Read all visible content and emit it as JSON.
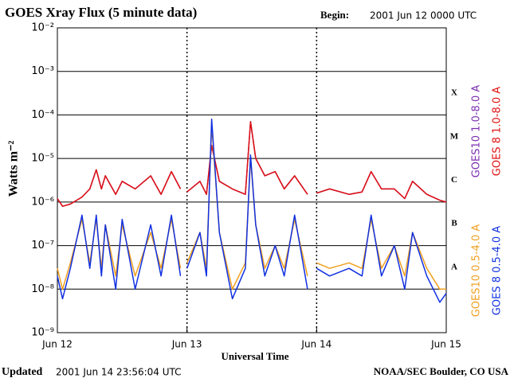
{
  "chart_data": {
    "type": "line",
    "title": "GOES Xray Flux (5 minute data)",
    "begin_label": "Begin:",
    "begin_value": "2001 Jun 12 0000 UTC",
    "updated_label": "Updated",
    "updated_value": "2001 Jun 14 23:56:04 UTC",
    "source": "NOAA/SEC Boulder, CO USA",
    "xlabel": "Universal Time",
    "ylabel": "Watts m⁻²",
    "ylog": true,
    "ylim": [
      1e-09,
      0.01
    ],
    "yticks": [
      {
        "value": 1e-09,
        "label": "10⁻⁹"
      },
      {
        "value": 1e-08,
        "label": "10⁻⁸"
      },
      {
        "value": 1e-07,
        "label": "10⁻⁷"
      },
      {
        "value": 1e-06,
        "label": "10⁻⁶"
      },
      {
        "value": 1e-05,
        "label": "10⁻⁵"
      },
      {
        "value": 0.0001,
        "label": "10⁻⁴"
      },
      {
        "value": 0.001,
        "label": "10⁻³"
      },
      {
        "value": 0.01,
        "label": "10⁻²"
      }
    ],
    "xlim": [
      12,
      15
    ],
    "xticks": [
      {
        "value": 12,
        "label": "Jun 12"
      },
      {
        "value": 13,
        "label": "Jun 13"
      },
      {
        "value": 14,
        "label": "Jun 14"
      },
      {
        "value": 15,
        "label": "Jun 15"
      }
    ],
    "grid": true,
    "class_labels": {
      "labels": [
        "A",
        "B",
        "C",
        "M",
        "X"
      ],
      "values": [
        1e-08,
        1e-07,
        1e-06,
        1e-05,
        0.0001
      ]
    },
    "x": [
      12.0,
      12.04,
      12.1,
      12.19,
      12.25,
      12.3,
      12.34,
      12.37,
      12.45,
      12.5,
      12.6,
      12.72,
      12.8,
      12.88,
      12.95,
      12.98,
      13.0,
      13.1,
      13.15,
      13.19,
      13.25,
      13.35,
      13.45,
      13.49,
      13.53,
      13.6,
      13.68,
      13.75,
      13.83,
      13.93,
      13.98,
      14.0,
      14.1,
      14.25,
      14.35,
      14.42,
      14.5,
      14.6,
      14.68,
      14.74,
      14.85,
      14.95,
      15.0
    ],
    "series": [
      {
        "name": "GOES10 1.0-8.0 A",
        "color": "#7b2fb0",
        "legend_group": "long",
        "values": [
          1.2e-06,
          8e-07,
          9e-07,
          1.3e-06,
          2e-06,
          5.5e-06,
          2e-06,
          4e-06,
          1.5e-06,
          3e-06,
          2e-06,
          4e-06,
          1.5e-06,
          5e-06,
          2e-06,
          null,
          1.7e-06,
          3e-06,
          1.5e-06,
          2e-05,
          3e-06,
          2e-06,
          1.5e-06,
          7e-05,
          1e-05,
          4e-06,
          5e-06,
          2e-06,
          4e-06,
          1.5e-06,
          null,
          1.6e-06,
          2e-06,
          1.5e-06,
          1.7e-06,
          5e-06,
          2e-06,
          2e-06,
          1.2e-06,
          3e-06,
          1.5e-06,
          1.1e-06,
          1e-06
        ]
      },
      {
        "name": "GOES 8 1.0-8.0 A",
        "color": "#e01010",
        "legend_group": "long",
        "values": [
          1.2e-06,
          8e-07,
          9e-07,
          1.3e-06,
          2e-06,
          5.5e-06,
          2e-06,
          4e-06,
          1.5e-06,
          3e-06,
          2e-06,
          4e-06,
          1.5e-06,
          5e-06,
          2e-06,
          null,
          1.7e-06,
          3e-06,
          1.5e-06,
          2e-05,
          3e-06,
          2e-06,
          1.5e-06,
          7e-05,
          1e-05,
          4e-06,
          5e-06,
          2e-06,
          4e-06,
          1.5e-06,
          null,
          1.6e-06,
          2e-06,
          1.5e-06,
          1.7e-06,
          5e-06,
          2e-06,
          2e-06,
          1.2e-06,
          3e-06,
          1.5e-06,
          1.1e-06,
          1e-06
        ]
      },
      {
        "name": "GOES10 0.5-4.0 A",
        "color": "#f0a020",
        "legend_group": "short",
        "values": [
          3e-08,
          1e-08,
          4e-08,
          4e-07,
          4e-08,
          4e-07,
          3e-08,
          3e-07,
          2e-08,
          3e-07,
          2e-08,
          2e-07,
          3e-08,
          4e-07,
          3e-08,
          null,
          4e-08,
          2e-07,
          3e-08,
          6e-05,
          2e-07,
          1e-08,
          4e-08,
          1e-05,
          3e-07,
          3e-08,
          1e-07,
          3e-08,
          4e-07,
          2e-08,
          null,
          4e-08,
          3e-08,
          4e-08,
          3e-08,
          4e-07,
          3e-08,
          1e-07,
          2e-08,
          2e-07,
          3e-08,
          1e-08,
          1e-08
        ]
      },
      {
        "name": "GOES 8 0.5-4.0 A",
        "color": "#1030e0",
        "legend_group": "short",
        "values": [
          2e-08,
          6e-09,
          3e-08,
          5e-07,
          3e-08,
          5e-07,
          2e-08,
          3e-07,
          1e-08,
          4e-07,
          1e-08,
          3e-07,
          2e-08,
          5e-07,
          2e-08,
          null,
          3e-08,
          2e-07,
          2e-08,
          8e-05,
          2e-07,
          6e-09,
          3e-08,
          1.2e-05,
          3e-07,
          2e-08,
          1e-07,
          2e-08,
          5e-07,
          1e-08,
          null,
          3e-08,
          2e-08,
          3e-08,
          2e-08,
          5e-07,
          2e-08,
          1e-07,
          1e-08,
          2e-07,
          2e-08,
          5e-09,
          8e-09
        ]
      }
    ]
  }
}
